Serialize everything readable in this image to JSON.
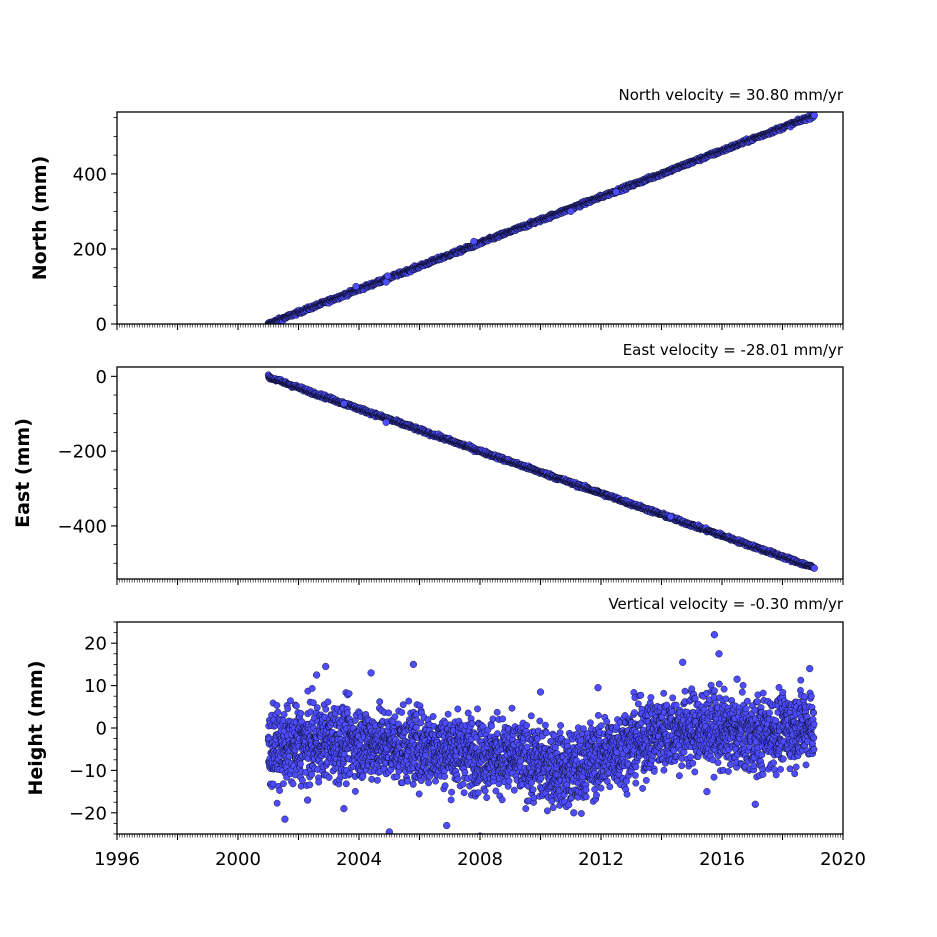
{
  "chart_data": [
    {
      "type": "scatter",
      "title": "North velocity = 30.80 mm/yr",
      "xlabel": "",
      "ylabel": "North (mm)",
      "xlim": [
        1996,
        2020
      ],
      "ylim": [
        0,
        565
      ],
      "yticks": [
        0,
        200,
        400
      ],
      "ytick_labels": [
        "0",
        "200",
        "400"
      ],
      "show_x_tick_labels": false,
      "grid": false,
      "marker_color": "#4d4dff",
      "edge_color": "#000000",
      "trend": {
        "x_start": 2001.0,
        "y_start": 0,
        "x_end": 2019.05,
        "y_end": 556,
        "noise": 2.5
      },
      "points": [
        {
          "x": 2003.9,
          "y": 100
        },
        {
          "x": 2004.9,
          "y": 112
        },
        {
          "x": 2004.95,
          "y": 128
        },
        {
          "x": 2007.8,
          "y": 220
        },
        {
          "x": 2011.0,
          "y": 300
        },
        {
          "x": 2012.5,
          "y": 352
        },
        {
          "x": 2019.05,
          "y": 556
        }
      ]
    },
    {
      "type": "scatter",
      "title": "East velocity = -28.01 mm/yr",
      "xlabel": "",
      "ylabel": "East (mm)",
      "xlim": [
        1996,
        2020
      ],
      "ylim": [
        -542,
        25
      ],
      "yticks": [
        -400,
        -200,
        0
      ],
      "ytick_labels": [
        "−400",
        "−200",
        "0"
      ],
      "show_x_tick_labels": false,
      "grid": false,
      "marker_color": "#4d4dff",
      "edge_color": "#000000",
      "trend": {
        "x_start": 2001.0,
        "y_start": -2,
        "x_end": 2019.05,
        "y_end": -512,
        "noise": 2.5
      },
      "points": [
        {
          "x": 2004.9,
          "y": -123
        },
        {
          "x": 2003.5,
          "y": -73
        },
        {
          "x": 2014.3,
          "y": -375
        },
        {
          "x": 2019.05,
          "y": -513
        }
      ]
    },
    {
      "type": "scatter",
      "title": "Vertical velocity = -0.30 mm/yr",
      "xlabel": "",
      "ylabel": "Height (mm)",
      "xlim": [
        1996,
        2020
      ],
      "ylim": [
        -25,
        25
      ],
      "yticks": [
        -20,
        -10,
        0,
        10,
        20
      ],
      "ytick_labels": [
        "−20",
        "−10",
        "0",
        "10",
        "20"
      ],
      "xticks": [
        1996,
        2000,
        2004,
        2008,
        2012,
        2016,
        2020
      ],
      "xtick_labels": [
        "1996",
        "2000",
        "2004",
        "2008",
        "2012",
        "2016",
        "2020"
      ],
      "show_x_tick_labels": true,
      "grid": false,
      "marker_color": "#4d4dff",
      "edge_color": "#000000",
      "baseline": [
        {
          "x": 2001.0,
          "y": -5
        },
        {
          "x": 2003.0,
          "y": -3
        },
        {
          "x": 2005.0,
          "y": -4
        },
        {
          "x": 2007.0,
          "y": -5
        },
        {
          "x": 2009.0,
          "y": -7
        },
        {
          "x": 2011.0,
          "y": -10
        },
        {
          "x": 2012.5,
          "y": -5
        },
        {
          "x": 2014.0,
          "y": -1
        },
        {
          "x": 2015.5,
          "y": 0
        },
        {
          "x": 2017.0,
          "y": -2
        },
        {
          "x": 2019.0,
          "y": 1
        }
      ],
      "points": [
        {
          "x": 2015.75,
          "y": 22
        },
        {
          "x": 2015.9,
          "y": 17.5
        },
        {
          "x": 2005.8,
          "y": 15
        },
        {
          "x": 2014.7,
          "y": 15.5
        },
        {
          "x": 2002.9,
          "y": 14.5
        },
        {
          "x": 2004.4,
          "y": 13
        },
        {
          "x": 2002.6,
          "y": 12.5
        },
        {
          "x": 2018.9,
          "y": 14
        },
        {
          "x": 2016.5,
          "y": 11.5
        },
        {
          "x": 2010.0,
          "y": 8.5
        },
        {
          "x": 2011.9,
          "y": 9.5
        },
        {
          "x": 2005.0,
          "y": -24.5
        },
        {
          "x": 2008.0,
          "y": -25.5
        },
        {
          "x": 2001.55,
          "y": -21.5
        },
        {
          "x": 2006.9,
          "y": -23
        },
        {
          "x": 2003.5,
          "y": -19
        },
        {
          "x": 2002.3,
          "y": -17
        },
        {
          "x": 2017.1,
          "y": -18
        },
        {
          "x": 2011.1,
          "y": -20
        },
        {
          "x": 2015.5,
          "y": -15
        }
      ]
    }
  ]
}
